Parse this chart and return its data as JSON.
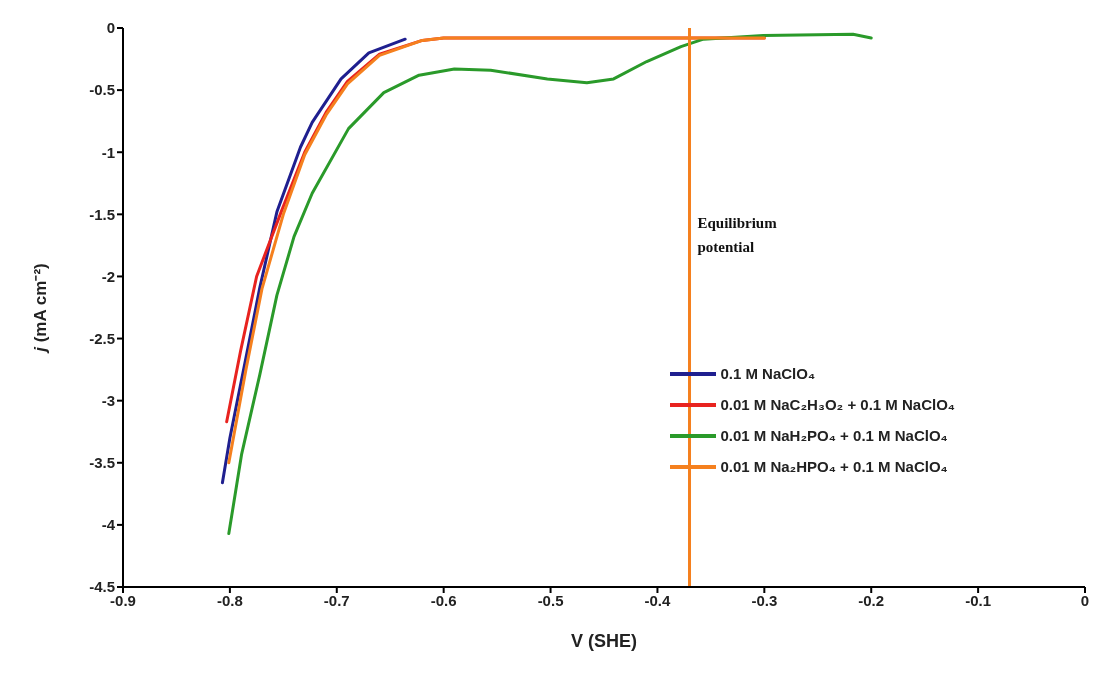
{
  "chart_data": {
    "type": "line",
    "xlabel": "V (SHE)",
    "ylabel": "j (mA cm⁻²)",
    "xlim": [
      -0.9,
      0
    ],
    "xticks": [
      -0.9,
      -0.8,
      -0.7,
      -0.6,
      -0.5,
      -0.4,
      -0.3,
      -0.2,
      -0.1,
      0
    ],
    "ylim": [
      -4.5,
      0
    ],
    "yticks": [
      -4.5,
      -4,
      -3.5,
      -3,
      -2.5,
      -2,
      -1.5,
      -1,
      -0.5,
      0
    ],
    "grid": false,
    "legend": "right",
    "marker": "none",
    "line_style": "solid",
    "series": [
      {
        "name": "0.1 M NaClO₄",
        "color": "#1f1f8f",
        "x": [
          -0.807,
          -0.8,
          -0.786,
          -0.772,
          -0.756,
          -0.734,
          -0.723,
          -0.696,
          -0.67,
          -0.636
        ],
        "values": [
          -3.66,
          -3.3,
          -2.7,
          -2.09,
          -1.48,
          -0.96,
          -0.76,
          -0.41,
          -0.2,
          -0.09
        ]
      },
      {
        "name": "0.01 M NaC₂H₃O₂ + 0.1 M NaClO₄",
        "color": "#e8231f",
        "x": [
          -0.803,
          -0.79,
          -0.775,
          -0.752,
          -0.73,
          -0.71,
          -0.69,
          -0.66,
          -0.62,
          -0.6,
          -0.5,
          -0.4,
          -0.3
        ],
        "values": [
          -3.17,
          -2.6,
          -2.0,
          -1.48,
          -1.0,
          -0.68,
          -0.43,
          -0.21,
          -0.1,
          -0.08,
          -0.08,
          -0.08,
          -0.08
        ]
      },
      {
        "name": "0.01 M NaH₂PO₄ + 0.1 M NaClO₄",
        "color": "#2a9a2a",
        "x": [
          -0.801,
          -0.789,
          -0.772,
          -0.756,
          -0.74,
          -0.723,
          -0.689,
          -0.656,
          -0.623,
          -0.59,
          -0.556,
          -0.503,
          -0.466,
          -0.441,
          -0.41,
          -0.378,
          -0.357,
          -0.301,
          -0.217,
          -0.2
        ],
        "values": [
          -4.07,
          -3.43,
          -2.79,
          -2.15,
          -1.68,
          -1.33,
          -0.81,
          -0.52,
          -0.38,
          -0.33,
          -0.34,
          -0.41,
          -0.44,
          -0.41,
          -0.27,
          -0.15,
          -0.09,
          -0.06,
          -0.05,
          -0.08
        ]
      },
      {
        "name": "0.01 M Na₂HPO₄ + 0.1 M NaClO₄",
        "color": "#f5801e",
        "x": [
          -0.801,
          -0.785,
          -0.77,
          -0.75,
          -0.73,
          -0.71,
          -0.69,
          -0.66,
          -0.62,
          -0.6,
          -0.5,
          -0.4,
          -0.3
        ],
        "values": [
          -3.5,
          -2.75,
          -2.1,
          -1.5,
          -1.02,
          -0.7,
          -0.45,
          -0.22,
          -0.1,
          -0.08,
          -0.08,
          -0.08,
          -0.08
        ]
      }
    ],
    "ref_lines": [
      {
        "axis": "x",
        "value": -0.37,
        "label": "Equilibrium potential",
        "color": "#f5801e",
        "line_style": "solid"
      }
    ]
  }
}
